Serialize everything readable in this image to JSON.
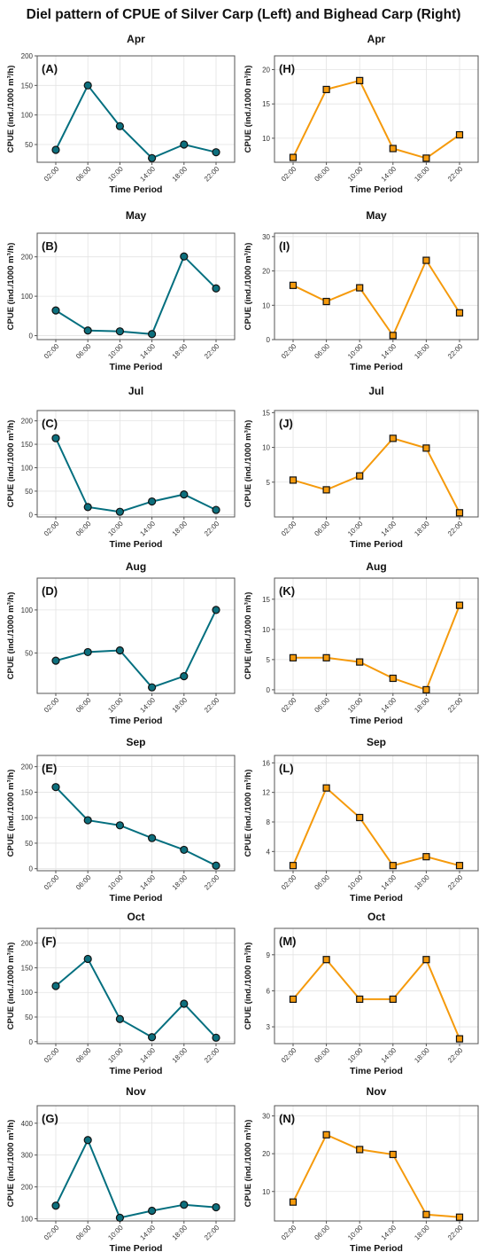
{
  "figure_title": "Diel pattern of CPUE of Silver Carp (Left) and Bighead Carp (Right)",
  "colors": {
    "silver": "#046f7f",
    "bighead": "#f59a0c",
    "marker_fill_silver": "#0d6f7d",
    "marker_fill_bighead": "#f59a0c",
    "marker_stroke": "#111111"
  },
  "chart_data": [
    {
      "type": "line",
      "title": "Apr",
      "panel_label": "(A)",
      "x": [
        "02:00",
        "06:00",
        "10:00",
        "14:00",
        "18:00",
        "22:00"
      ],
      "values": [
        41,
        150,
        81,
        27,
        50,
        37
      ],
      "yticks": [
        50,
        100,
        150,
        200
      ],
      "ylim": [
        20,
        200
      ],
      "xlabel": "Time Period",
      "ylabel": "CPUE (ind./1000 m³/h)",
      "marker": "circle",
      "grid": true
    },
    {
      "type": "line",
      "title": "Apr",
      "panel_label": "(H)",
      "x": [
        "02:00",
        "06:00",
        "10:00",
        "14:00",
        "18:00",
        "22:00"
      ],
      "values": [
        7.2,
        17.1,
        18.4,
        8.5,
        7.1,
        10.5
      ],
      "yticks": [
        10,
        15,
        20
      ],
      "ylim": [
        6.5,
        22
      ],
      "xlabel": "Time Period",
      "ylabel": "CPUE (ind./1000 m³/h)",
      "marker": "square",
      "grid": true
    },
    {
      "type": "line",
      "title": "May",
      "panel_label": "(B)",
      "x": [
        "02:00",
        "06:00",
        "10:00",
        "14:00",
        "18:00",
        "22:00"
      ],
      "values": [
        64,
        13,
        11,
        4,
        201,
        120
      ],
      "yticks": [
        0,
        100,
        200
      ],
      "ylim": [
        -10,
        260
      ],
      "xlabel": "Time Period",
      "ylabel": "CPUE (ind./1000 m³/h)",
      "marker": "circle",
      "grid": true
    },
    {
      "type": "line",
      "title": "May",
      "panel_label": "(I)",
      "x": [
        "02:00",
        "06:00",
        "10:00",
        "14:00",
        "18:00",
        "22:00"
      ],
      "values": [
        15.8,
        11.1,
        15.1,
        1.2,
        23.1,
        7.8
      ],
      "yticks": [
        0,
        10,
        20,
        30
      ],
      "ylim": [
        0,
        31
      ],
      "xlabel": "Time Period",
      "ylabel": "CPUE (ind./1000 m³/h)",
      "marker": "square",
      "grid": true
    },
    {
      "type": "line",
      "title": "Jul",
      "panel_label": "(C)",
      "x": [
        "02:00",
        "06:00",
        "10:00",
        "14:00",
        "18:00",
        "22:00"
      ],
      "values": [
        163,
        16,
        6,
        28,
        43,
        10
      ],
      "yticks": [
        0,
        50,
        100,
        150,
        200
      ],
      "ylim": [
        -5,
        222
      ],
      "xlabel": "Time Period",
      "ylabel": "CPUE (ind./1000 m³/h)",
      "marker": "circle",
      "grid": true
    },
    {
      "type": "line",
      "title": "Jul",
      "panel_label": "(J)",
      "x": [
        "02:00",
        "06:00",
        "10:00",
        "14:00",
        "18:00",
        "22:00"
      ],
      "values": [
        5.3,
        3.9,
        5.9,
        11.3,
        9.9,
        0.6
      ],
      "yticks": [
        5,
        10,
        15
      ],
      "ylim": [
        0,
        15.3
      ],
      "xlabel": "Time Period",
      "ylabel": "CPUE (ind./1000 m³/h)",
      "marker": "square",
      "grid": true
    },
    {
      "type": "line",
      "title": "Aug",
      "panel_label": "(D)",
      "x": [
        "02:00",
        "06:00",
        "10:00",
        "14:00",
        "18:00",
        "22:00"
      ],
      "values": [
        41,
        51,
        53,
        10,
        23,
        100
      ],
      "yticks": [
        50,
        100
      ],
      "ylim": [
        3,
        137
      ],
      "xlabel": "Time Period",
      "ylabel": "CPUE (ind./1000 m³/h)",
      "marker": "circle",
      "grid": true
    },
    {
      "type": "line",
      "title": "Aug",
      "panel_label": "(K)",
      "x": [
        "02:00",
        "06:00",
        "10:00",
        "14:00",
        "18:00",
        "22:00"
      ],
      "values": [
        5.3,
        5.3,
        4.6,
        1.9,
        0,
        14
      ],
      "yticks": [
        0,
        5,
        10,
        15
      ],
      "ylim": [
        -0.6,
        18.5
      ],
      "xlabel": "Time Period",
      "ylabel": "CPUE (ind./1000 m³/h)",
      "marker": "square",
      "grid": true
    },
    {
      "type": "line",
      "title": "Sep",
      "panel_label": "(E)",
      "x": [
        "02:00",
        "06:00",
        "10:00",
        "14:00",
        "18:00",
        "22:00"
      ],
      "values": [
        160,
        95,
        85,
        60,
        37,
        6
      ],
      "yticks": [
        0,
        50,
        100,
        150,
        200
      ],
      "ylim": [
        -4,
        222
      ],
      "xlabel": "Time Period",
      "ylabel": "CPUE (ind./1000 m³/h)",
      "marker": "circle",
      "grid": true
    },
    {
      "type": "line",
      "title": "Sep",
      "panel_label": "(L)",
      "x": [
        "02:00",
        "06:00",
        "10:00",
        "14:00",
        "18:00",
        "22:00"
      ],
      "values": [
        2.1,
        12.6,
        8.6,
        2.1,
        3.3,
        2.1
      ],
      "yticks": [
        4,
        8,
        12,
        16
      ],
      "ylim": [
        1.4,
        17
      ],
      "xlabel": "Time Period",
      "ylabel": "CPUE (ind./1000 m³/h)",
      "marker": "square",
      "grid": true
    },
    {
      "type": "line",
      "title": "Oct",
      "panel_label": "(F)",
      "x": [
        "02:00",
        "06:00",
        "10:00",
        "14:00",
        "18:00",
        "22:00"
      ],
      "values": [
        113,
        168,
        46,
        9,
        77,
        8
      ],
      "yticks": [
        0,
        50,
        100,
        150,
        200
      ],
      "ylim": [
        -4,
        230
      ],
      "xlabel": "Time Period",
      "ylabel": "CPUE (ind./1000 m³/h)",
      "marker": "circle",
      "grid": true
    },
    {
      "type": "line",
      "title": "Oct",
      "panel_label": "(M)",
      "x": [
        "02:00",
        "06:00",
        "10:00",
        "14:00",
        "18:00",
        "22:00"
      ],
      "values": [
        5.3,
        8.6,
        5.3,
        5.3,
        8.6,
        2
      ],
      "yticks": [
        3,
        6,
        9
      ],
      "ylim": [
        1.6,
        11.2
      ],
      "xlabel": "Time Period",
      "ylabel": "CPUE (ind./1000 m³/h)",
      "marker": "square",
      "grid": true
    },
    {
      "type": "line",
      "title": "Nov",
      "panel_label": "(G)",
      "x": [
        "02:00",
        "06:00",
        "10:00",
        "14:00",
        "18:00",
        "22:00"
      ],
      "values": [
        141,
        347,
        103,
        125,
        144,
        136
      ],
      "yticks": [
        100,
        200,
        300,
        400
      ],
      "ylim": [
        93,
        455
      ],
      "xlabel": "Time Period",
      "ylabel": "CPUE (ind./1000 m³/h)",
      "marker": "circle",
      "grid": true
    },
    {
      "type": "line",
      "title": "Nov",
      "panel_label": "(N)",
      "x": [
        "02:00",
        "06:00",
        "10:00",
        "14:00",
        "18:00",
        "22:00"
      ],
      "values": [
        7.2,
        25,
        21.1,
        19.8,
        3.9,
        3.2
      ],
      "yticks": [
        10,
        20,
        30
      ],
      "ylim": [
        2.2,
        32.7
      ],
      "xlabel": "Time Period",
      "ylabel": "CPUE (ind./1000 m³/h)",
      "marker": "square",
      "grid": true
    }
  ]
}
